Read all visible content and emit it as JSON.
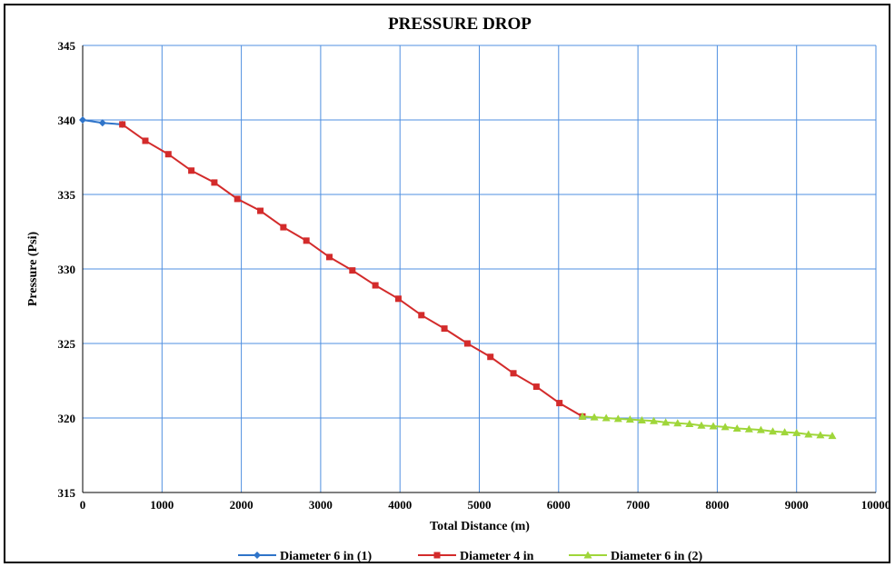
{
  "chart_data": {
    "type": "line",
    "title": "PRESSURE DROP",
    "xlabel": "Total Distance (m)",
    "ylabel": "Pressure (Psi)",
    "xlim": [
      0,
      10000
    ],
    "ylim": [
      315,
      345
    ],
    "xticks": [
      0,
      1000,
      2000,
      3000,
      4000,
      5000,
      6000,
      7000,
      8000,
      9000,
      10000
    ],
    "yticks": [
      315,
      320,
      325,
      330,
      335,
      340,
      345
    ],
    "grid": true,
    "legend_position": "bottom",
    "series": [
      {
        "name": "Diameter 6 in (1)",
        "color": "#2f74c9",
        "marker": "diamond",
        "x": [
          0,
          250,
          500
        ],
        "y": [
          340.0,
          339.8,
          339.7
        ]
      },
      {
        "name": "Diameter 4 in",
        "color": "#d32b2b",
        "marker": "square",
        "x": [
          500,
          790,
          1080,
          1370,
          1660,
          1950,
          2240,
          2530,
          2820,
          3110,
          3400,
          3690,
          3980,
          4270,
          4560,
          4850,
          5140,
          5430,
          5720,
          6010,
          6300
        ],
        "y": [
          339.7,
          338.6,
          337.7,
          336.6,
          335.8,
          334.7,
          333.9,
          332.8,
          331.9,
          330.8,
          329.9,
          328.9,
          328.0,
          326.9,
          326.0,
          325.0,
          324.1,
          323.0,
          322.1,
          321.0,
          320.1
        ]
      },
      {
        "name": "Diameter 6 in (2)",
        "color": "#9fd63a",
        "marker": "triangle",
        "x": [
          6300,
          6450,
          6600,
          6750,
          6900,
          7050,
          7200,
          7350,
          7500,
          7650,
          7800,
          7950,
          8100,
          8250,
          8400,
          8550,
          8700,
          8850,
          9000,
          9150,
          9300,
          9450
        ],
        "y": [
          320.1,
          320.05,
          320.0,
          319.95,
          319.9,
          319.85,
          319.8,
          319.7,
          319.65,
          319.6,
          319.5,
          319.45,
          319.4,
          319.3,
          319.25,
          319.2,
          319.1,
          319.05,
          319.0,
          318.9,
          318.85,
          318.8
        ]
      }
    ]
  }
}
